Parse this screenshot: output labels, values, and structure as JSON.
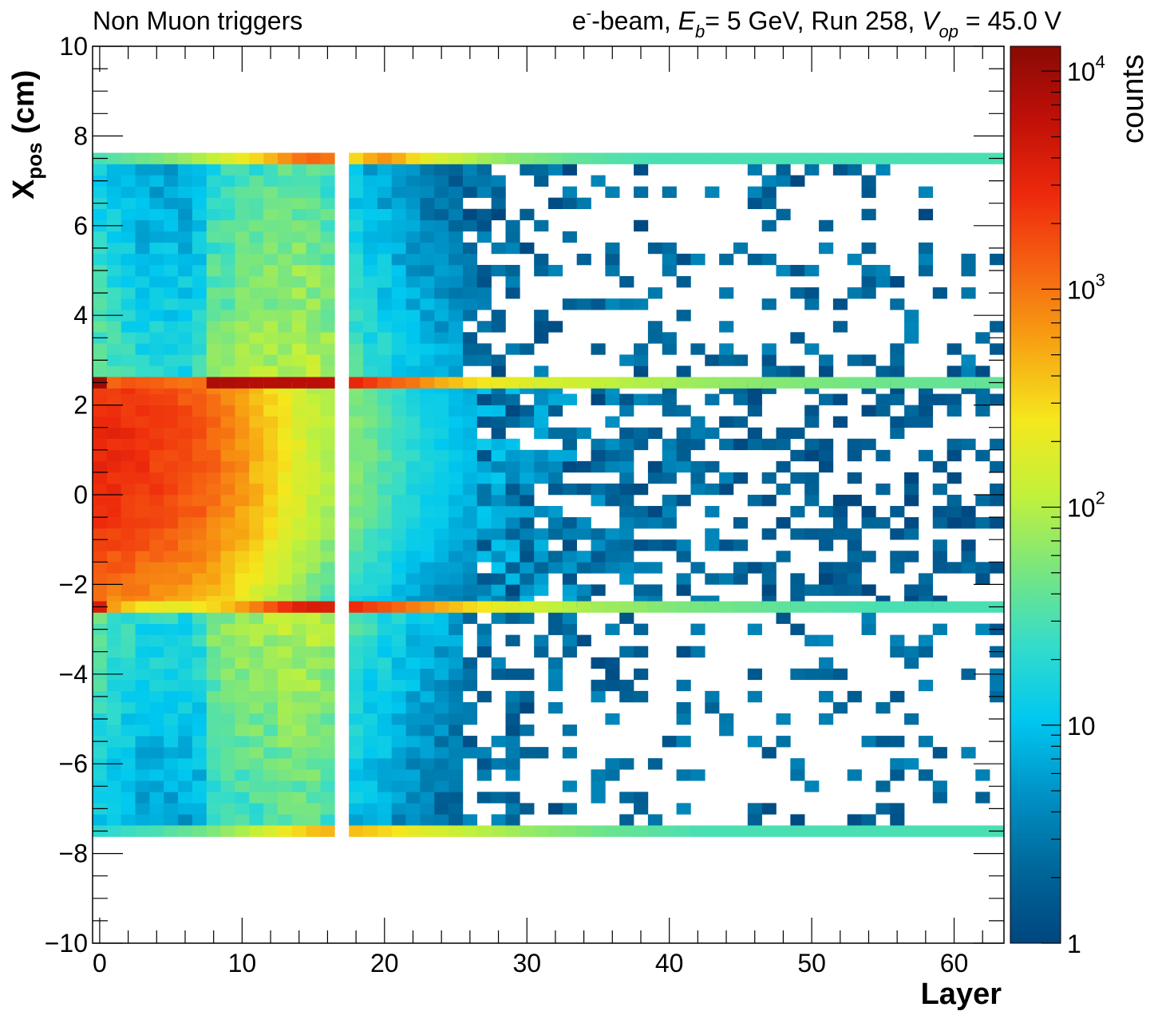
{
  "title_left": "Non Muon triggers",
  "title_right": {
    "particle": "e",
    "charge": "-",
    "beam_word": "-beam, ",
    "energy_symbol": "E",
    "energy_sub": "b",
    "energy_rest": "= 5 GeV, Run 258, ",
    "voltage_symbol": "V",
    "voltage_sub": "op",
    "voltage_rest": " = 45.0 V"
  },
  "ylabel": {
    "main": "X",
    "sub": "pos",
    "rest": " (cm)"
  },
  "xlabel": "Layer",
  "zlabel": "counts",
  "colors": {
    "palette": [
      "#00467f",
      "#00679a",
      "#0092c6",
      "#00c8f0",
      "#35dcc9",
      "#7ae67e",
      "#c2f13a",
      "#f5e71d",
      "#f7a512",
      "#f66512",
      "#ee2a0c",
      "#c11008",
      "#8a0a05"
    ]
  },
  "chart_data": {
    "type": "heatmap",
    "x": {
      "label": "Layer",
      "range": [
        -0.5,
        63.5
      ],
      "ticks": [
        "0",
        "10",
        "20",
        "30",
        "40",
        "50",
        "60"
      ],
      "bin_width": 1
    },
    "y": {
      "label": "X_pos (cm)",
      "range": [
        -10,
        10
      ],
      "ticks": [
        "−10",
        "−8",
        "−6",
        "−4",
        "−2",
        "0",
        "2",
        "4",
        "6",
        "8",
        "10"
      ],
      "bin_width": 0.25
    },
    "z": {
      "label": "counts",
      "scale": "log",
      "range": [
        1,
        13000
      ],
      "ticks": [
        "1",
        "10",
        "10^2",
        "10^3",
        "10^4"
      ]
    },
    "empty_layers": [
      17
    ],
    "regions": {
      "core": {
        "x_range": [
          -2.5,
          2.5
        ],
        "peak_counts_by_layer": [
          3000,
          2800,
          2600,
          2400,
          2200,
          2000,
          1800,
          1600,
          1200,
          900,
          700,
          500,
          350,
          250,
          180,
          130,
          100,
          80,
          60,
          45,
          35,
          26,
          20,
          16,
          13,
          11,
          9,
          8,
          7,
          6,
          5,
          5,
          4,
          4,
          3,
          3,
          3,
          3,
          2,
          2,
          2,
          2,
          2,
          2,
          2,
          1,
          1,
          1,
          1,
          1,
          1,
          1,
          1,
          1,
          1,
          1,
          1,
          1,
          1,
          1,
          1,
          1,
          1,
          1
        ]
      },
      "edge_row_top": {
        "x_range": [
          2.375,
          2.625
        ],
        "counts_by_layer": [
          10000,
          1200,
          1500,
          1400,
          1300,
          1100,
          1000,
          1100,
          8000,
          8000,
          7500,
          7000,
          7000,
          7000,
          6500,
          6500,
          6000,
          4000,
          3000,
          2200,
          1500,
          1200,
          1000,
          700,
          500,
          400,
          300,
          250,
          220,
          200,
          180,
          160,
          150,
          140,
          130,
          120,
          110,
          100,
          95,
          90,
          85,
          80,
          75,
          70,
          68,
          65,
          62,
          60,
          58,
          56,
          54,
          52,
          50,
          48,
          46,
          45,
          44,
          43,
          42,
          41,
          40,
          40,
          40,
          40
        ]
      },
      "edge_row_bottom": {
        "x_range": [
          -2.625,
          -2.375
        ],
        "counts_by_layer": [
          4000,
          600,
          350,
          250,
          220,
          200,
          200,
          250,
          300,
          400,
          600,
          900,
          1500,
          2500,
          3500,
          4000,
          3800,
          3200,
          2600,
          2000,
          1600,
          1200,
          900,
          700,
          500,
          400,
          300,
          250,
          200,
          170,
          150,
          130,
          110,
          100,
          90,
          80,
          75,
          70,
          65,
          60,
          55,
          52,
          50,
          48,
          46,
          44,
          42,
          40,
          38,
          36,
          35,
          34,
          33,
          32,
          31,
          30,
          30,
          30,
          30,
          30,
          30,
          30,
          30,
          30
        ]
      },
      "boundary_row_top": {
        "x_range": [
          7.375,
          7.625
        ],
        "counts_by_layer": [
          30,
          35,
          40,
          45,
          50,
          60,
          70,
          90,
          120,
          160,
          220,
          300,
          450,
          700,
          1000,
          1200,
          1000,
          0,
          300,
          500,
          700,
          500,
          300,
          200,
          150,
          120,
          100,
          80,
          70,
          60,
          55,
          50,
          45,
          40,
          38,
          35,
          33,
          32,
          31,
          30,
          30,
          30,
          30,
          30,
          30,
          30,
          30,
          30,
          30,
          30,
          30,
          30,
          30,
          30,
          30,
          30,
          30,
          30,
          30,
          30,
          30,
          30,
          30,
          30
        ]
      },
      "boundary_row_bottom": {
        "x_range": [
          -7.625,
          -7.375
        ],
        "counts_by_layer": [
          20,
          22,
          25,
          28,
          30,
          35,
          40,
          45,
          55,
          70,
          90,
          120,
          160,
          220,
          300,
          400,
          450,
          450,
          400,
          350,
          300,
          250,
          200,
          170,
          150,
          130,
          110,
          100,
          90,
          80,
          70,
          65,
          60,
          55,
          50,
          45,
          42,
          40,
          38,
          36,
          34,
          32,
          30,
          30,
          30,
          30,
          30,
          30,
          30,
          30,
          30,
          30,
          30,
          30,
          30,
          30,
          30,
          30,
          30,
          30,
          30,
          30,
          30,
          30
        ]
      },
      "side_bands": {
        "x_ranges": [
          [
            2.625,
            7.375
          ],
          [
            -7.375,
            -2.625
          ]
        ],
        "peak_counts_by_layer": [
          40,
          30,
          25,
          20,
          20,
          20,
          20,
          25,
          60,
          70,
          80,
          90,
          100,
          110,
          120,
          110,
          90,
          0,
          30,
          25,
          20,
          15,
          12,
          10,
          8,
          7,
          6,
          5,
          4,
          4,
          3,
          3,
          2,
          2,
          2,
          2,
          2,
          1,
          1,
          1,
          1,
          1,
          1,
          1,
          1,
          1,
          1,
          1,
          1,
          1,
          1,
          1,
          1,
          1,
          1,
          1,
          1,
          1,
          1,
          1,
          1,
          1,
          1,
          1
        ]
      }
    }
  }
}
